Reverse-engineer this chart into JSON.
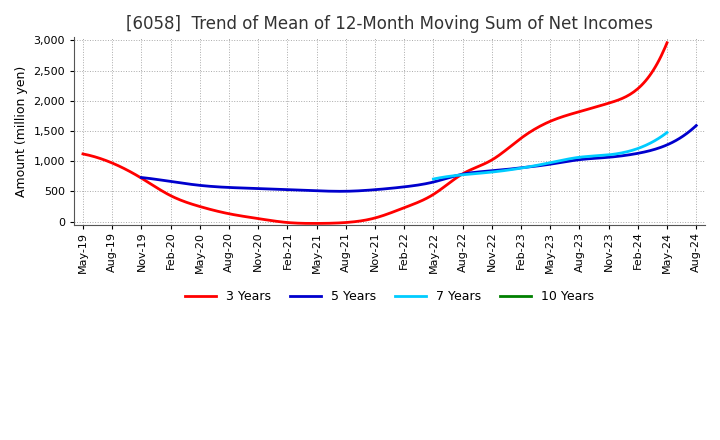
{
  "title": "[6058]  Trend of Mean of 12-Month Moving Sum of Net Incomes",
  "ylabel": "Amount (million yen)",
  "ylim": [
    -50,
    3050
  ],
  "yticks": [
    0,
    500,
    1000,
    1500,
    2000,
    2500,
    3000
  ],
  "background_color": "#ffffff",
  "plot_bg_color": "#ffffff",
  "grid_color": "#aaaaaa",
  "x_labels": [
    "May-19",
    "Aug-19",
    "Nov-19",
    "Feb-20",
    "May-20",
    "Aug-20",
    "Nov-20",
    "Feb-21",
    "May-21",
    "Aug-21",
    "Nov-21",
    "Feb-22",
    "May-22",
    "Aug-22",
    "Nov-22",
    "Feb-23",
    "May-23",
    "Aug-23",
    "Nov-23",
    "Feb-24",
    "May-24",
    "Aug-24"
  ],
  "series": {
    "3 Years": {
      "color": "#ff0000",
      "data": [
        1120,
        970,
        720,
        430,
        250,
        130,
        50,
        -15,
        -30,
        -15,
        60,
        230,
        450,
        790,
        1020,
        1380,
        1660,
        1820,
        1960,
        2200,
        2960,
        null
      ]
    },
    "5 Years": {
      "color": "#0000cd",
      "data": [
        null,
        null,
        730,
        665,
        600,
        565,
        548,
        528,
        510,
        502,
        528,
        575,
        655,
        785,
        840,
        890,
        950,
        1025,
        1065,
        1130,
        1270,
        1590
      ]
    },
    "7 Years": {
      "color": "#00ccff",
      "data": [
        null,
        null,
        null,
        null,
        null,
        null,
        null,
        null,
        null,
        null,
        null,
        null,
        705,
        775,
        820,
        885,
        975,
        1065,
        1105,
        1210,
        1475,
        null
      ]
    },
    "10 Years": {
      "color": "#008000",
      "data": [
        null,
        null,
        null,
        null,
        null,
        null,
        null,
        null,
        null,
        null,
        null,
        null,
        null,
        null,
        null,
        null,
        null,
        null,
        null,
        null,
        null,
        null
      ]
    }
  },
  "legend_order": [
    "3 Years",
    "5 Years",
    "7 Years",
    "10 Years"
  ],
  "title_fontsize": 12,
  "label_fontsize": 9,
  "tick_fontsize": 8,
  "title_color": "#333333",
  "line_width": 2.0
}
